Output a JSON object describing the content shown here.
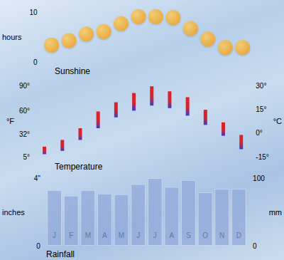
{
  "chart_data": [
    {
      "type": "scatter",
      "title": "Sunshine",
      "y_label": "hours",
      "categories": [
        "J",
        "F",
        "M",
        "A",
        "M",
        "J",
        "J",
        "A",
        "S",
        "O",
        "N",
        "D"
      ],
      "values": [
        3.4,
        4.3,
        5.6,
        6.1,
        7.7,
        9.1,
        9.1,
        8.9,
        6.7,
        4.6,
        2.9,
        2.9
      ],
      "color": "#f5a01a",
      "marker": "circle",
      "ylim": [
        0,
        10
      ],
      "yticks": [
        0,
        10
      ],
      "grid": false,
      "tick_labels": "y"
    },
    {
      "type": "range_bar",
      "title": "Temperature",
      "y_label": "°F",
      "y2_label": "°C",
      "categories": [
        "J",
        "F",
        "M",
        "A",
        "M",
        "J",
        "J",
        "A",
        "S",
        "O",
        "N",
        "D"
      ],
      "values": [
        [
          8,
          17
        ],
        [
          12,
          25
        ],
        [
          25,
          39
        ],
        [
          39,
          59
        ],
        [
          52,
          70
        ],
        [
          60,
          81
        ],
        [
          66,
          89
        ],
        [
          63,
          83
        ],
        [
          54,
          76
        ],
        [
          43,
          61
        ],
        [
          30,
          46
        ],
        [
          14,
          31
        ]
      ],
      "color": "#d9232b",
      "ylim": [
        5,
        90
      ],
      "yticks": [
        {
          "value": 5,
          "label": "5°"
        },
        {
          "value": 32,
          "label": "32°"
        },
        {
          "value": 60,
          "label": "60°"
        },
        {
          "value": 90,
          "label": "90°"
        }
      ],
      "y2lim": [
        -15,
        30
      ],
      "y2ticks": [
        {
          "value": -15,
          "label": "-15°"
        },
        {
          "value": 0,
          "label": "0°"
        },
        {
          "value": 15,
          "label": "15°"
        },
        {
          "value": 30,
          "label": "30°"
        }
      ],
      "grid": false,
      "tick_labels": "y"
    },
    {
      "type": "bar",
      "title": "Rainfall",
      "y_label": "inches",
      "y2_label": "mm",
      "categories": [
        "J",
        "F",
        "M",
        "A",
        "M",
        "J",
        "J",
        "A",
        "S",
        "O",
        "N",
        "D"
      ],
      "series": [
        {
          "values": [
            82,
            74,
            82,
            77,
            76,
            91,
            100,
            87,
            97,
            79,
            84,
            84
          ],
          "color": "#8fa6d8",
          "axis": "y2"
        }
      ],
      "ylim": [
        0,
        4
      ],
      "yticks": [
        0,
        {
          "value": 4,
          "label": "4\""
        }
      ],
      "y2lim": [
        0,
        100
      ],
      "y2ticks": [
        0,
        100
      ],
      "grid": false,
      "tick_labels": true
    }
  ]
}
